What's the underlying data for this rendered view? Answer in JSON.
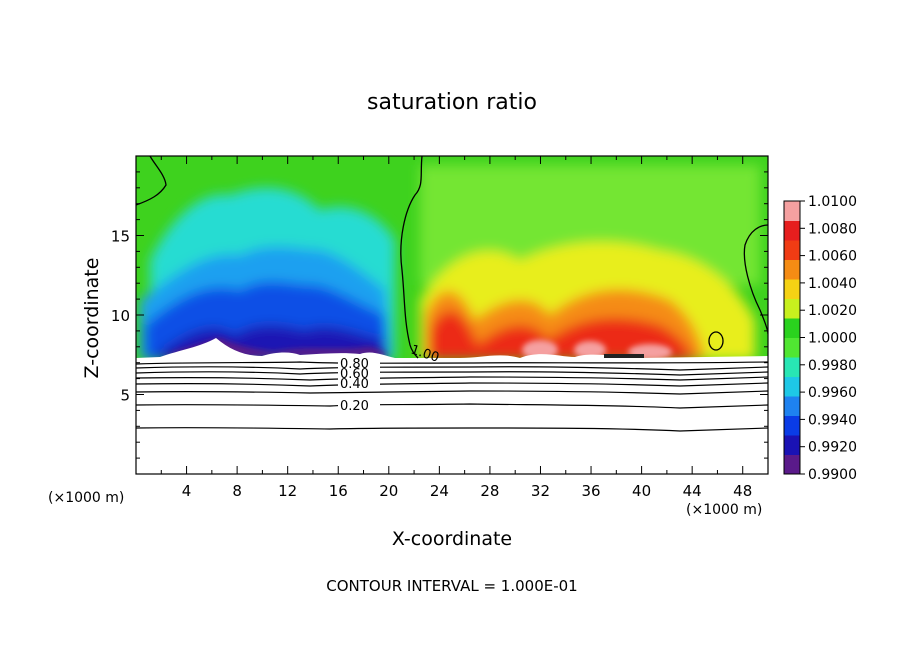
{
  "chart_data": {
    "type": "heatmap",
    "title": "saturation ratio",
    "xlabel": "X-coordinate",
    "ylabel": "Z-coordinate",
    "x_unit_label": "(×1000 m)",
    "x_ticks": [
      4,
      8,
      12,
      16,
      20,
      24,
      28,
      32,
      36,
      40,
      44,
      48
    ],
    "y_ticks": [
      5,
      10,
      15
    ],
    "xlim": [
      0,
      50
    ],
    "ylim": [
      0,
      20
    ],
    "footer": "CONTOUR INTERVAL = 1.000E-01",
    "colorbar": {
      "min": 0.99,
      "max": 1.01,
      "tick_labels": [
        "1.0100",
        "1.0080",
        "1.0060",
        "1.0040",
        "1.0020",
        "1.0000",
        "0.9980",
        "0.9960",
        "0.9940",
        "0.9920",
        "0.9900"
      ],
      "colors": [
        "#5a1a8a",
        "#1a12b4",
        "#0a3ce6",
        "#1e82f0",
        "#1ec8e6",
        "#28e6b4",
        "#50e632",
        "#2ad21e",
        "#c8f01e",
        "#f5d214",
        "#f58c14",
        "#f03c14",
        "#e61e1e",
        "#f5a0a0"
      ]
    },
    "contour_labels": [
      "0.80",
      "0.60",
      "0.40",
      "0.20",
      "1.00"
    ],
    "approx_contours": [
      {
        "level": 1.0,
        "x": [
          21.2,
          21.0,
          21.5,
          22.0,
          22.3
        ],
        "z": [
          19.5,
          16.0,
          12.0,
          9.0,
          7.4
        ]
      },
      {
        "level": 0.2,
        "x": [
          0,
          10,
          20,
          30,
          40,
          44,
          50
        ],
        "z": [
          4.2,
          4.15,
          4.1,
          4.2,
          4.3,
          4.1,
          4.2
        ]
      }
    ]
  }
}
